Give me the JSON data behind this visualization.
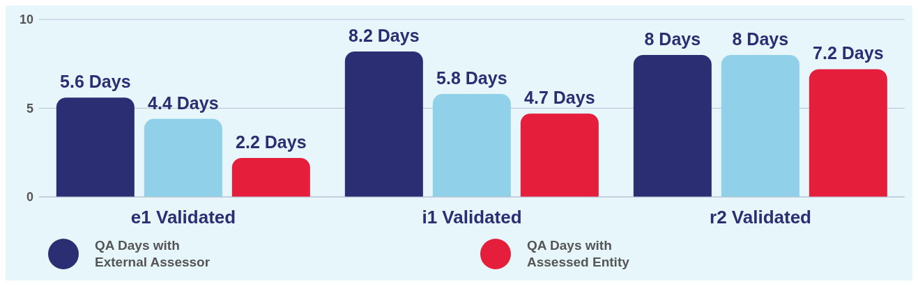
{
  "chart_data": {
    "type": "bar",
    "categories": [
      "e1 Validated",
      "i1 Validated",
      "r2 Validated"
    ],
    "series": [
      {
        "name": "QA Days with External Assessor",
        "color": "#2b2e73",
        "values": [
          5.6,
          8.2,
          8
        ],
        "value_labels": [
          "5.6 Days",
          "8.2 Days",
          "8 Days"
        ]
      },
      {
        "color": "#90d0e8",
        "values": [
          4.4,
          5.8,
          8
        ],
        "value_labels": [
          "4.4 Days",
          "5.8 Days",
          "8 Days"
        ]
      },
      {
        "name": "QA Days with Assessed Entity",
        "color": "#e51e3c",
        "values": [
          2.2,
          4.7,
          7.2
        ],
        "value_labels": [
          "2.2 Days",
          "4.7 Days",
          "7.2 Days"
        ]
      }
    ],
    "ylim": [
      0,
      10
    ],
    "yticks": [
      0,
      5,
      10
    ],
    "grid": "y",
    "legend": "bottom"
  }
}
